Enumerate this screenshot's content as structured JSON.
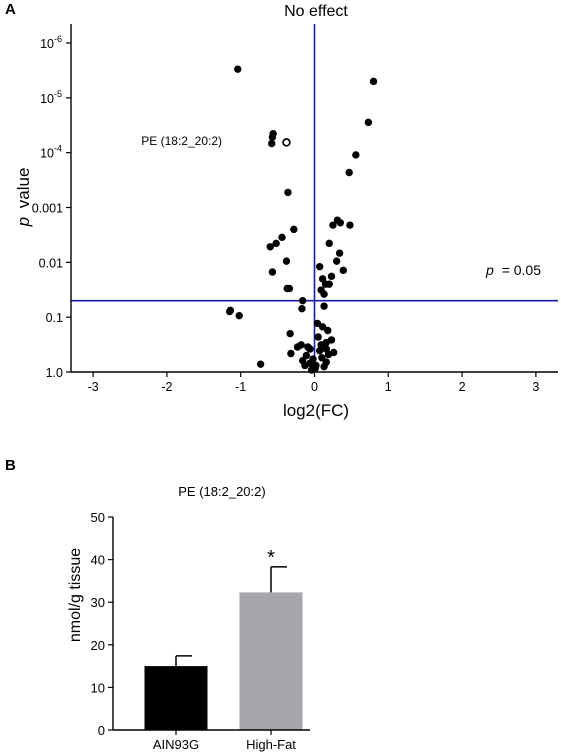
{
  "chart_data": [
    {
      "panel": "A",
      "type": "scatter",
      "xlabel_prefix": "",
      "xlabel": "log2(FC)",
      "ylabel_prefix": "p",
      "ylabel": "value",
      "y_scale": "log",
      "y_inverted": true,
      "xlim": [
        -3.3,
        3.3
      ],
      "ylim": [
        1.0,
        4.5e-07
      ],
      "x_ticks": [
        -3,
        -2,
        -1,
        0,
        1,
        2,
        3
      ],
      "x_tick_labels": [
        "-3",
        "-2",
        "-1",
        "0",
        "1",
        "2",
        "3"
      ],
      "y_ticks": [
        1e-06,
        1e-05,
        0.0001,
        0.001,
        0.01,
        0.1,
        1.0
      ],
      "y_tick_labels": [
        "10-6",
        "10-5",
        "10-4",
        "0.001",
        "0.01",
        "0.1",
        "1.0"
      ],
      "y_tick_exponent_base": "10",
      "y_tick_exponents": [
        "-6",
        "-5",
        "-4",
        "",
        "",
        "",
        ""
      ],
      "vline": {
        "x": 0,
        "label": "No effect",
        "color": "#1a1aa8"
      },
      "hline": {
        "y": 0.05,
        "label_prefix": "p",
        "label": "= 0.05",
        "color": "#1a1aa8"
      },
      "highlight": {
        "x": -0.38,
        "y": 6.5e-05,
        "label": "PE (18:2_20:2)"
      },
      "points": [
        {
          "x": -1.04,
          "y": 3e-06
        },
        {
          "x": 0.8,
          "y": 5e-06
        },
        {
          "x": 0.73,
          "y": 2.8e-05
        },
        {
          "x": -0.56,
          "y": 4.5e-05
        },
        {
          "x": -0.57,
          "y": 5.2e-05
        },
        {
          "x": -0.58,
          "y": 6.8e-05
        },
        {
          "x": 0.56,
          "y": 0.00011
        },
        {
          "x": 0.47,
          "y": 0.00023
        },
        {
          "x": -0.36,
          "y": 0.00053
        },
        {
          "x": 0.31,
          "y": 0.0017
        },
        {
          "x": 0.35,
          "y": 0.0019
        },
        {
          "x": 0.25,
          "y": 0.0021
        },
        {
          "x": 0.48,
          "y": 0.0021
        },
        {
          "x": -0.28,
          "y": 0.0025
        },
        {
          "x": -0.44,
          "y": 0.0035
        },
        {
          "x": -0.52,
          "y": 0.0045
        },
        {
          "x": -0.6,
          "y": 0.0052
        },
        {
          "x": 0.2,
          "y": 0.0045
        },
        {
          "x": 0.34,
          "y": 0.0068
        },
        {
          "x": -0.38,
          "y": 0.0095
        },
        {
          "x": 0.3,
          "y": 0.0095
        },
        {
          "x": 0.07,
          "y": 0.012
        },
        {
          "x": 0.39,
          "y": 0.014
        },
        {
          "x": -0.57,
          "y": 0.015
        },
        {
          "x": 0.23,
          "y": 0.018
        },
        {
          "x": 0.11,
          "y": 0.02
        },
        {
          "x": 0.15,
          "y": 0.025
        },
        {
          "x": 0.2,
          "y": 0.025
        },
        {
          "x": -0.37,
          "y": 0.03
        },
        {
          "x": -0.34,
          "y": 0.03
        },
        {
          "x": 0.09,
          "y": 0.032
        },
        {
          "x": 0.13,
          "y": 0.038
        },
        {
          "x": -0.16,
          "y": 0.05
        },
        {
          "x": 0.13,
          "y": 0.063
        },
        {
          "x": -0.17,
          "y": 0.07
        },
        {
          "x": -1.14,
          "y": 0.075
        },
        {
          "x": -1.15,
          "y": 0.079
        },
        {
          "x": -1.02,
          "y": 0.094
        },
        {
          "x": 0.04,
          "y": 0.13
        },
        {
          "x": 0.11,
          "y": 0.15
        },
        {
          "x": 0.18,
          "y": 0.175
        },
        {
          "x": -0.33,
          "y": 0.2
        },
        {
          "x": 0.05,
          "y": 0.23
        },
        {
          "x": 0.23,
          "y": 0.26
        },
        {
          "x": 0.16,
          "y": 0.29
        },
        {
          "x": 0.09,
          "y": 0.32
        },
        {
          "x": -0.18,
          "y": 0.32
        },
        {
          "x": -0.09,
          "y": 0.35
        },
        {
          "x": -0.23,
          "y": 0.35
        },
        {
          "x": -0.06,
          "y": 0.38
        },
        {
          "x": 0.16,
          "y": 0.38
        },
        {
          "x": 0.07,
          "y": 0.41
        },
        {
          "x": 0.26,
          "y": 0.44
        },
        {
          "x": -0.32,
          "y": 0.46
        },
        {
          "x": 0.19,
          "y": 0.48
        },
        {
          "x": -0.11,
          "y": 0.5
        },
        {
          "x": 0.1,
          "y": 0.55
        },
        {
          "x": -0.02,
          "y": 0.58
        },
        {
          "x": -0.16,
          "y": 0.62
        },
        {
          "x": 0.16,
          "y": 0.66
        },
        {
          "x": -0.06,
          "y": 0.69
        },
        {
          "x": -0.73,
          "y": 0.72
        },
        {
          "x": 0.02,
          "y": 0.76
        },
        {
          "x": -0.13,
          "y": 0.76
        },
        {
          "x": 0.13,
          "y": 0.8
        },
        {
          "x": 0.01,
          "y": 0.86
        },
        {
          "x": -0.04,
          "y": 0.92
        }
      ]
    },
    {
      "panel": "B",
      "type": "bar",
      "title": "PE (18:2_20:2)",
      "ylabel": "nmol/g tissue",
      "ylim": [
        0,
        50
      ],
      "y_ticks": [
        0,
        10,
        20,
        30,
        40,
        50
      ],
      "y_tick_labels": [
        "0",
        "10",
        "20",
        "30",
        "40",
        "50"
      ],
      "categories": [
        "AIN93G",
        "High-Fat"
      ],
      "values": [
        15.0,
        32.3
      ],
      "errors": [
        2.4,
        6.0
      ],
      "colors": [
        "#000000",
        "#a6a6aa"
      ],
      "significance": [
        "",
        "*"
      ]
    }
  ]
}
